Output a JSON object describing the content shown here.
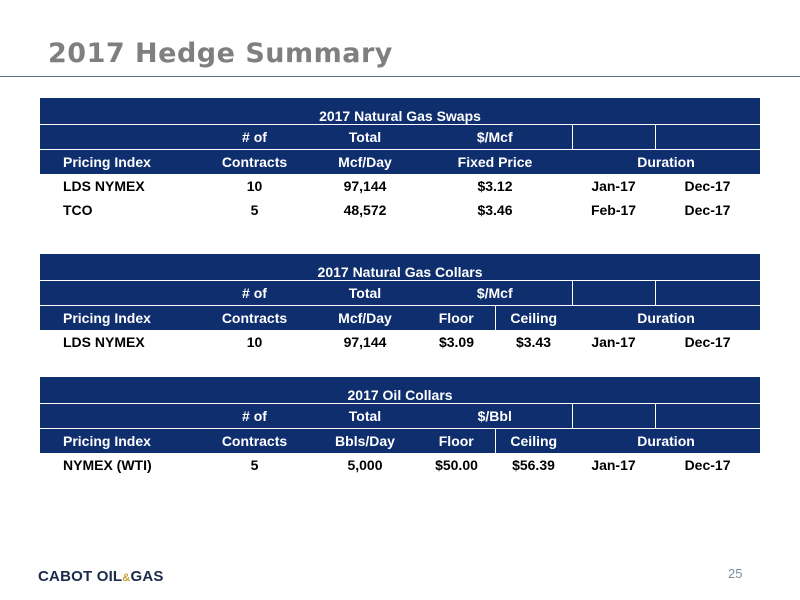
{
  "page": {
    "title": "2017 Hedge Summary",
    "page_number": "25"
  },
  "logo": {
    "part1": "CABOT OIL",
    "amp": "&",
    "part2": "GAS"
  },
  "colors": {
    "header_bg": "#0f2e6e",
    "title_text": "#7f7f7f",
    "rule": "#5b7282"
  },
  "swaps": {
    "title": "2017 Natural Gas Swaps",
    "header1": [
      "",
      "# of",
      "Total",
      "$/Mcf",
      "",
      ""
    ],
    "header2": [
      "Pricing Index",
      "Contracts",
      "Mcf/Day",
      "Fixed Price",
      "Duration"
    ],
    "rows": [
      [
        "LDS NYMEX",
        "10",
        "97,144",
        "$3.12",
        "Jan-17",
        "Dec-17"
      ],
      [
        "TCO",
        "5",
        "48,572",
        "$3.46",
        "Feb-17",
        "Dec-17"
      ]
    ]
  },
  "gas_collars": {
    "title": "2017 Natural Gas Collars",
    "header1": [
      "",
      "# of",
      "Total",
      "$/Mcf",
      "",
      ""
    ],
    "header2": [
      "Pricing Index",
      "Contracts",
      "Mcf/Day",
      "Floor",
      "Ceiling",
      "Duration"
    ],
    "rows": [
      [
        "LDS NYMEX",
        "10",
        "97,144",
        "$3.09",
        "$3.43",
        "Jan-17",
        "Dec-17"
      ]
    ]
  },
  "oil_collars": {
    "title": "2017 Oil Collars",
    "header1": [
      "",
      "# of",
      "Total",
      "$/Bbl",
      "",
      ""
    ],
    "header2": [
      "Pricing Index",
      "Contracts",
      "Bbls/Day",
      "Floor",
      "Ceiling",
      "Duration"
    ],
    "rows": [
      [
        "NYMEX (WTI)",
        "5",
        "5,000",
        "$50.00",
        "$56.39",
        "Jan-17",
        "Dec-17"
      ]
    ]
  }
}
